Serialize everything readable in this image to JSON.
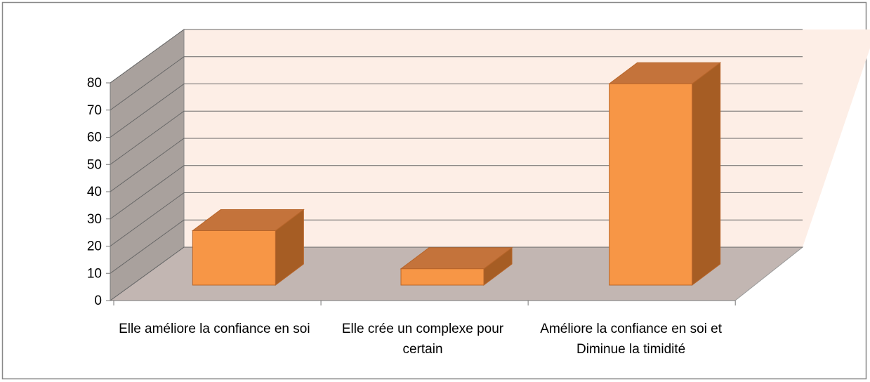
{
  "chart_data": {
    "type": "bar3d",
    "categories": [
      "Elle améliore la confiance en soi",
      "Elle crée un complexe pour certain",
      "Améliore la confiance en soi et Diminue la timidité"
    ],
    "values": [
      20,
      6,
      74
    ],
    "color": "#f79646",
    "ylim": [
      0,
      80
    ],
    "yticks": [
      0,
      10,
      20,
      30,
      40,
      50,
      60,
      70,
      80
    ],
    "grid": true
  }
}
